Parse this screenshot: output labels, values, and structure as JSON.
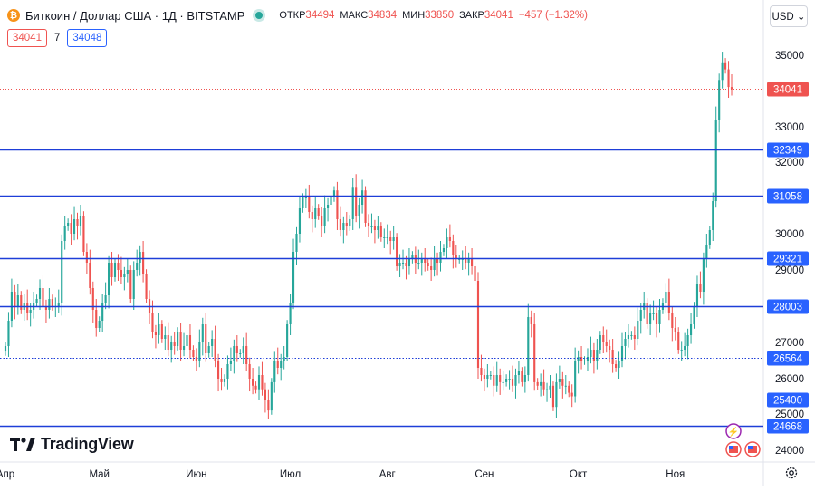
{
  "header": {
    "title": "Биткоин / Доллар США · 1Д · BITSTAMP",
    "open_label": "ОТКР",
    "open_value": "34494",
    "high_label": "МАКС",
    "high_value": "34834",
    "low_label": "МИН",
    "low_value": "33850",
    "close_label": "ЗАКР",
    "close_value": "34041",
    "change": "−457 (−1.32%)",
    "bid": "34041",
    "spread": "7",
    "ask": "34048",
    "coin_icon": "bitcoin-icon",
    "market_status_icon": "market-open-dot-icon"
  },
  "currency_button": "USD ⌄",
  "branding": "TradingView",
  "colors": {
    "up": "#26a69a",
    "down": "#ef5350",
    "level_line": "#1e3ed8",
    "level_label_bg": "#2962ff",
    "price_label_bg": "#ef5350"
  },
  "chart_data": {
    "type": "candlestick",
    "symbol": "Биткоин / Доллар США · 1Д · BITSTAMP",
    "x_ticks": [
      "Апр",
      "Май",
      "Июн",
      "Июл",
      "Авг",
      "Сен",
      "Окт",
      "Ноя"
    ],
    "y_ticks": [
      24000,
      25000,
      26000,
      27000,
      28000,
      29000,
      30000,
      31000,
      32000,
      33000,
      34000,
      35000
    ],
    "ylim": [
      23600,
      35800
    ],
    "grid": false,
    "closes": [
      26900,
      27600,
      28400,
      28000,
      28300,
      27900,
      28100,
      27800,
      27900,
      28100,
      28200,
      28500,
      28000,
      27900,
      28200,
      28000,
      28000,
      28100,
      29800,
      30200,
      30300,
      30000,
      30400,
      30200,
      30500,
      29500,
      29200,
      28500,
      27900,
      27400,
      27600,
      28100,
      28300,
      29200,
      28800,
      29200,
      29000,
      28800,
      28900,
      29000,
      28200,
      29000,
      29200,
      29500,
      28900,
      28200,
      27800,
      27300,
      27200,
      27500,
      27100,
      27200,
      26800,
      27000,
      26900,
      27300,
      26800,
      26900,
      27200,
      26800,
      26600,
      26500,
      27000,
      27500,
      26700,
      26900,
      27100,
      26500,
      26000,
      25900,
      26000,
      26400,
      26500,
      26900,
      26700,
      26700,
      26900,
      26400,
      26000,
      25800,
      25700,
      26100,
      25700,
      25400,
      25100,
      25900,
      26500,
      26300,
      26500,
      26600,
      27500,
      28100,
      29500,
      30000,
      30700,
      31000,
      31000,
      30600,
      30400,
      30700,
      30500,
      30200,
      30700,
      30800,
      31000,
      31200,
      30400,
      30100,
      30300,
      30200,
      30400,
      31300,
      30500,
      30800,
      31200,
      30300,
      30200,
      30200,
      30100,
      30200,
      29900,
      29900,
      29900,
      29800,
      29900,
      29100,
      29200,
      29200,
      29100,
      29300,
      29400,
      29200,
      29200,
      29300,
      29200,
      29100,
      29000,
      29300,
      29200,
      29500,
      29600,
      29900,
      29800,
      29400,
      29300,
      29300,
      29300,
      29200,
      29300,
      29100,
      28700,
      26300,
      26100,
      26000,
      26100,
      26100,
      25800,
      26100,
      25900,
      25900,
      26000,
      26000,
      25800,
      26100,
      26200,
      25900,
      26100,
      27700,
      27500,
      25900,
      25800,
      25900,
      25700,
      25700,
      25800,
      25200,
      25900,
      26000,
      25800,
      25800,
      25600,
      25500,
      26500,
      26600,
      26500,
      26500,
      26600,
      26800,
      26500,
      26800,
      27200,
      27000,
      26900,
      26800,
      26400,
      26300,
      26500,
      26900,
      27100,
      27200,
      27200,
      27100,
      27600,
      27900,
      28100,
      27500,
      27800,
      27800,
      27500,
      27900,
      28100,
      28400,
      27800,
      27400,
      27300,
      26800,
      26800,
      26900,
      27200,
      27500,
      28000,
      28600,
      28400,
      29300,
      29700,
      30100,
      30900,
      33200,
      34300,
      34800,
      34600,
      34100,
      34041
    ],
    "levels": [
      {
        "value": 32349,
        "style": "solid"
      },
      {
        "value": 31058,
        "style": "solid"
      },
      {
        "value": 29321,
        "style": "solid"
      },
      {
        "value": 28003,
        "style": "solid"
      },
      {
        "value": 26564,
        "style": "dotted"
      },
      {
        "value": 25400,
        "style": "dashed"
      },
      {
        "value": 24668,
        "style": "solid"
      }
    ],
    "last_price": 34041
  }
}
